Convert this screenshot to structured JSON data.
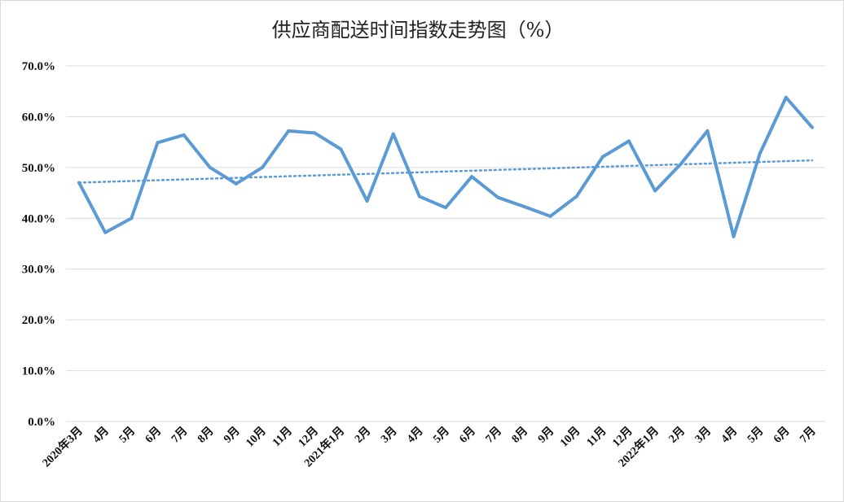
{
  "chart_data": {
    "type": "line",
    "title": "供应商配送时间指数走势图（%）",
    "xlabel": "",
    "ylabel": "",
    "ylim": [
      0,
      70
    ],
    "ytick_labels": [
      "0.0%",
      "10.0%",
      "20.0%",
      "30.0%",
      "40.0%",
      "50.0%",
      "60.0%",
      "70.0%"
    ],
    "categories": [
      "2020年3月",
      "4月",
      "5月",
      "6月",
      "7月",
      "8月",
      "9月",
      "10月",
      "11月",
      "12月",
      "2021年1月",
      "2月",
      "3月",
      "4月",
      "5月",
      "6月",
      "7月",
      "8月",
      "9月",
      "10月",
      "11月",
      "12月",
      "2022年1月",
      "2月",
      "3月",
      "4月",
      "5月",
      "6月",
      "7月"
    ],
    "series": [
      {
        "values": [
          47.0,
          37.2,
          40.0,
          54.9,
          56.4,
          50.0,
          46.8,
          50.0,
          57.2,
          56.8,
          53.6,
          43.4,
          56.6,
          44.3,
          42.1,
          48.2,
          44.1,
          42.3,
          40.4,
          44.3,
          52.1,
          55.2,
          45.4,
          50.8,
          57.2,
          36.4,
          52.7,
          63.8,
          57.9
        ],
        "color": "#5b9bd5"
      }
    ],
    "trendline": {
      "type": "linear",
      "style": "dotted",
      "color": "#5b9bd5"
    },
    "grid": true,
    "legend": "none"
  }
}
